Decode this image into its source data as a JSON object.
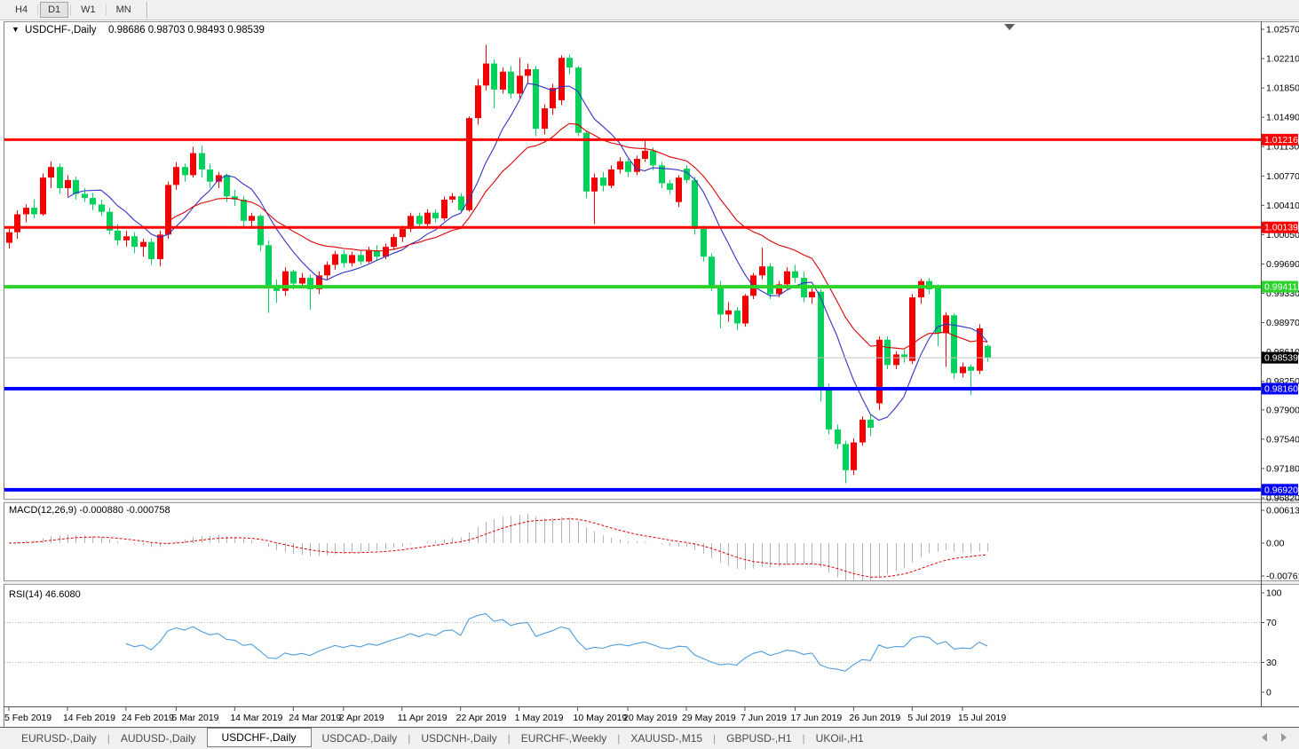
{
  "toolbar": {
    "timeframes": [
      {
        "label": "H4",
        "active": false
      },
      {
        "label": "D1",
        "active": true
      },
      {
        "label": "W1",
        "active": false
      },
      {
        "label": "MN",
        "active": false
      }
    ]
  },
  "chart": {
    "symbol": "USDCHF-,Daily",
    "ohlc_text": "0.98686 0.98703 0.98493 0.98539",
    "collapse_icon": "▼"
  },
  "indicators": {
    "macd": {
      "display": "MACD(12,26,9) -0.000880 -0.000758",
      "fast": 12,
      "slow": 26,
      "signal": 9
    },
    "rsi": {
      "display": "RSI(14) 46.6080",
      "period": 14
    }
  },
  "tabs": {
    "items": [
      {
        "label": "EURUSD-,Daily",
        "active": false
      },
      {
        "label": "AUDUSD-,Daily",
        "active": false
      },
      {
        "label": "USDCHF-,Daily",
        "active": true
      },
      {
        "label": "USDCAD-,Daily",
        "active": false
      },
      {
        "label": "USDCNH-,Daily",
        "active": false
      },
      {
        "label": "EURCHF-,Weekly",
        "active": false
      },
      {
        "label": "XAUUSD-,M15",
        "active": false
      },
      {
        "label": "GBPUSD-,H1",
        "active": false
      },
      {
        "label": "UKOil-,H1",
        "active": false
      }
    ]
  },
  "chart_data": {
    "type": "candlestick",
    "symbol": "USDCHF",
    "timeframe": "Daily",
    "up_color": "#F40000",
    "down_color": "#00D25B",
    "price_axis": {
      "max": 1.0257,
      "min": 0.9682,
      "labels": [
        "1.02570",
        "1.02210",
        "1.01850",
        "1.01490",
        "1.01130",
        "1.00770",
        "1.00410",
        "1.00050",
        "0.99690",
        "0.99330",
        "0.98970",
        "0.98610",
        "0.98250",
        "0.97900",
        "0.97540",
        "0.97180",
        "0.96820"
      ]
    },
    "current_price": {
      "value": 0.98539,
      "label": "0.98539",
      "line_color": "#C0C0C0",
      "box_color": "#000000"
    },
    "hlines": [
      {
        "value": 1.01216,
        "label": "1.01216",
        "color": "#FF0000",
        "thickness": 3
      },
      {
        "value": 1.00139,
        "label": "1.00139",
        "color": "#FF0000",
        "thickness": 3
      },
      {
        "value": 0.99411,
        "label": "0.99411",
        "color": "#2BD32B",
        "thickness": 4
      },
      {
        "value": 0.9816,
        "label": "0.98160",
        "color": "#0000FF",
        "thickness": 4
      },
      {
        "value": 0.9692,
        "label": "0.96920",
        "color": "#0000FF",
        "thickness": 4
      }
    ],
    "ma_lines": [
      {
        "type": "sma",
        "period": 8,
        "color": "#3232C8"
      },
      {
        "type": "ema",
        "period": 20,
        "color": "#DC0000"
      }
    ],
    "macd_axis": [
      "0.00613",
      "0.00",
      "-0.007612"
    ],
    "macd_hist_color": "#B4B4B4",
    "macd_signal_color": "#E00000",
    "rsi_axis": [
      "100",
      "70",
      "30",
      "0"
    ],
    "rsi_levels": [
      70,
      30
    ],
    "rsi_color": "#4E9CDC",
    "date_ticks": [
      [
        "5 Feb 2019",
        0
      ],
      [
        "14 Feb 2019",
        7
      ],
      [
        "24 Feb 2019",
        14
      ],
      [
        "5 Mar 2019",
        20
      ],
      [
        "14 Mar 2019",
        27
      ],
      [
        "24 Mar 2019",
        34
      ],
      [
        "2 Apr 2019",
        40
      ],
      [
        "11 Apr 2019",
        47
      ],
      [
        "22 Apr 2019",
        54
      ],
      [
        "1 May 2019",
        61
      ],
      [
        "10 May 2019",
        68
      ],
      [
        "20 May 2019",
        74
      ],
      [
        "29 May 2019",
        81
      ],
      [
        "7 Jun 2019",
        88
      ],
      [
        "17 Jun 2019",
        94
      ],
      [
        "26 Jun 2019",
        101
      ],
      [
        "5 Jul 2019",
        108
      ],
      [
        "15 Jul 2019",
        114
      ]
    ],
    "ohlc": [
      [
        0.9995,
        1.0012,
        0.9988,
        1.0008
      ],
      [
        1.0008,
        1.0035,
        1.0,
        1.003
      ],
      [
        1.003,
        1.0042,
        1.002,
        1.0038
      ],
      [
        1.0038,
        1.0048,
        1.0025,
        1.003
      ],
      [
        1.003,
        1.008,
        1.0028,
        1.0075
      ],
      [
        1.0075,
        1.0095,
        1.0062,
        1.0088
      ],
      [
        1.0088,
        1.0092,
        1.0055,
        1.0062
      ],
      [
        1.0062,
        1.0078,
        1.0052,
        1.0072
      ],
      [
        1.0072,
        1.0076,
        1.0048,
        1.0055
      ],
      [
        1.0055,
        1.0062,
        1.0045,
        1.005
      ],
      [
        1.005,
        1.0056,
        1.0035,
        1.0042
      ],
      [
        1.0042,
        1.0048,
        1.0028,
        1.0033
      ],
      [
        1.0033,
        1.0038,
        1.0005,
        1.001
      ],
      [
        1.001,
        1.0018,
        0.9992,
        0.9998
      ],
      [
        0.9998,
        1.001,
        0.999,
        1.0003
      ],
      [
        1.0003,
        1.0008,
        0.9982,
        0.999
      ],
      [
        0.999,
        1.0,
        0.9978,
        0.9996
      ],
      [
        0.9996,
        1.0,
        0.9968,
        0.9975
      ],
      [
        0.9975,
        1.001,
        0.9966,
        1.0005
      ],
      [
        1.0005,
        1.007,
        1.0,
        1.0066
      ],
      [
        1.0066,
        1.0094,
        1.006,
        1.0088
      ],
      [
        1.0088,
        1.0092,
        1.007,
        1.0078
      ],
      [
        1.0078,
        1.0113,
        1.0075,
        1.0105
      ],
      [
        1.0105,
        1.0114,
        1.0075,
        1.0085
      ],
      [
        1.0085,
        1.0092,
        1.0062,
        1.007
      ],
      [
        1.007,
        1.0082,
        1.0062,
        1.0078
      ],
      [
        1.0078,
        1.008,
        1.0045,
        1.0052
      ],
      [
        1.0052,
        1.006,
        1.004,
        1.0048
      ],
      [
        1.0048,
        1.0052,
        1.0015,
        1.0022
      ],
      [
        1.0022,
        1.0032,
        1.0012,
        1.0028
      ],
      [
        1.0028,
        1.003,
        0.9985,
        0.9992
      ],
      [
        0.9992,
        0.9998,
        0.9909,
        0.9941
      ],
      [
        0.9941,
        0.995,
        0.9921,
        0.9936
      ],
      [
        0.9936,
        0.9965,
        0.993,
        0.996
      ],
      [
        0.996,
        0.9962,
        0.9938,
        0.9945
      ],
      [
        0.9945,
        0.9958,
        0.994,
        0.9952
      ],
      [
        0.9952,
        0.9956,
        0.9913,
        0.9938
      ],
      [
        0.9938,
        0.996,
        0.9932,
        0.9955
      ],
      [
        0.9955,
        0.9972,
        0.995,
        0.9968
      ],
      [
        0.9968,
        0.9985,
        0.9962,
        0.9981
      ],
      [
        0.9981,
        0.9986,
        0.9965,
        0.997
      ],
      [
        0.997,
        0.9984,
        0.9966,
        0.998
      ],
      [
        0.998,
        0.9985,
        0.9968,
        0.9972
      ],
      [
        0.9972,
        0.999,
        0.997,
        0.9985
      ],
      [
        0.9985,
        0.9992,
        0.9974,
        0.9978
      ],
      [
        0.9978,
        0.9994,
        0.9975,
        0.999
      ],
      [
        0.999,
        1.0006,
        0.9986,
        1.0002
      ],
      [
        1.0002,
        1.0016,
        0.9996,
        1.0012
      ],
      [
        1.0012,
        1.0032,
        1.0008,
        1.0028
      ],
      [
        1.0028,
        1.0032,
        1.0014,
        1.0018
      ],
      [
        1.0018,
        1.0036,
        1.0015,
        1.0032
      ],
      [
        1.0032,
        1.0036,
        1.002,
        1.0025
      ],
      [
        1.0025,
        1.0052,
        1.0022,
        1.0048
      ],
      [
        1.0048,
        1.0056,
        1.0044,
        1.0052
      ],
      [
        1.0052,
        1.0056,
        1.0032,
        1.0035
      ],
      [
        1.0035,
        1.015,
        1.0033,
        1.0148
      ],
      [
        1.0148,
        1.0196,
        1.014,
        1.0188
      ],
      [
        1.0188,
        1.0238,
        1.0182,
        1.0215
      ],
      [
        1.0215,
        1.022,
        1.016,
        1.0183
      ],
      [
        1.0183,
        1.021,
        1.0178,
        1.0205
      ],
      [
        1.0205,
        1.0212,
        1.0172,
        1.0178
      ],
      [
        1.0178,
        1.0222,
        1.0172,
        1.02
      ],
      [
        1.02,
        1.0215,
        1.019,
        1.0208
      ],
      [
        1.0208,
        1.0212,
        1.0126,
        1.0135
      ],
      [
        1.0135,
        1.0165,
        1.0128,
        1.016
      ],
      [
        1.016,
        1.019,
        1.0152,
        1.0185
      ],
      [
        1.017,
        1.0225,
        1.0164,
        1.0222
      ],
      [
        1.0222,
        1.0226,
        1.0202,
        1.021
      ],
      [
        1.021,
        1.0212,
        1.0126,
        1.013
      ],
      [
        1.013,
        1.0132,
        1.005,
        1.0058
      ],
      [
        1.0058,
        1.008,
        1.0018,
        1.0075
      ],
      [
        1.0075,
        1.0082,
        1.0058,
        1.0065
      ],
      [
        1.0065,
        1.009,
        1.0062,
        1.0085
      ],
      [
        1.0085,
        1.01,
        1.008,
        1.0095
      ],
      [
        1.0095,
        1.0098,
        1.0076,
        1.0082
      ],
      [
        1.0082,
        1.0102,
        1.0078,
        1.0098
      ],
      [
        1.0098,
        1.012,
        1.0094,
        1.0108
      ],
      [
        1.0108,
        1.0112,
        1.0084,
        1.009
      ],
      [
        1.009,
        1.0094,
        1.0062,
        1.0068
      ],
      [
        1.0068,
        1.0072,
        1.0055,
        1.006
      ],
      [
        1.0045,
        1.0078,
        1.0039,
        1.0075
      ],
      [
        1.0086,
        1.009,
        1.0068,
        1.0072
      ],
      [
        1.0072,
        1.0076,
        1.0005,
        1.0012
      ],
      [
        1.0012,
        1.0016,
        0.9972,
        0.9978
      ],
      [
        0.9978,
        0.9982,
        0.9936,
        0.9942
      ],
      [
        0.9942,
        0.9948,
        0.989,
        0.9907
      ],
      [
        0.9907,
        0.9922,
        0.9898,
        0.9912
      ],
      [
        0.9912,
        0.9916,
        0.9888,
        0.9896
      ],
      [
        0.9896,
        0.9932,
        0.9892,
        0.993
      ],
      [
        0.993,
        0.9958,
        0.9926,
        0.9955
      ],
      [
        0.9955,
        0.9989,
        0.995,
        0.9966
      ],
      [
        0.9966,
        0.997,
        0.9926,
        0.9932
      ],
      [
        0.9932,
        0.9948,
        0.9928,
        0.9944
      ],
      [
        0.9944,
        0.9965,
        0.9938,
        0.996
      ],
      [
        0.996,
        0.9968,
        0.9946,
        0.9952
      ],
      [
        0.9952,
        0.996,
        0.9922,
        0.9928
      ],
      [
        0.9928,
        0.994,
        0.992,
        0.9935
      ],
      [
        0.9935,
        0.9938,
        0.98,
        0.9816
      ],
      [
        0.9816,
        0.9822,
        0.976,
        0.9766
      ],
      [
        0.9766,
        0.9772,
        0.9742,
        0.9748
      ],
      [
        0.9748,
        0.9752,
        0.97,
        0.9716
      ],
      [
        0.9716,
        0.9755,
        0.971,
        0.975
      ],
      [
        0.975,
        0.9782,
        0.9746,
        0.9778
      ],
      [
        0.9778,
        0.9784,
        0.9758,
        0.9768
      ],
      [
        0.9798,
        0.988,
        0.979,
        0.9876
      ],
      [
        0.9876,
        0.988,
        0.984,
        0.9845
      ],
      [
        0.9845,
        0.9862,
        0.984,
        0.9858
      ],
      [
        0.9858,
        0.9864,
        0.9848,
        0.9855
      ],
      [
        0.985,
        0.9932,
        0.9846,
        0.9928
      ],
      [
        0.9928,
        0.9951,
        0.992,
        0.9948
      ],
      [
        0.9948,
        0.9952,
        0.9932,
        0.9938
      ],
      [
        0.9939,
        0.9944,
        0.9868,
        0.9884
      ],
      [
        0.9884,
        0.991,
        0.9843,
        0.9906
      ],
      [
        0.9906,
        0.9908,
        0.9828,
        0.9835
      ],
      [
        0.9835,
        0.9848,
        0.983,
        0.9843
      ],
      [
        0.9843,
        0.9846,
        0.9808,
        0.9838
      ],
      [
        0.9838,
        0.9895,
        0.9834,
        0.989
      ],
      [
        0.98686,
        0.98703,
        0.98493,
        0.98539
      ]
    ]
  }
}
